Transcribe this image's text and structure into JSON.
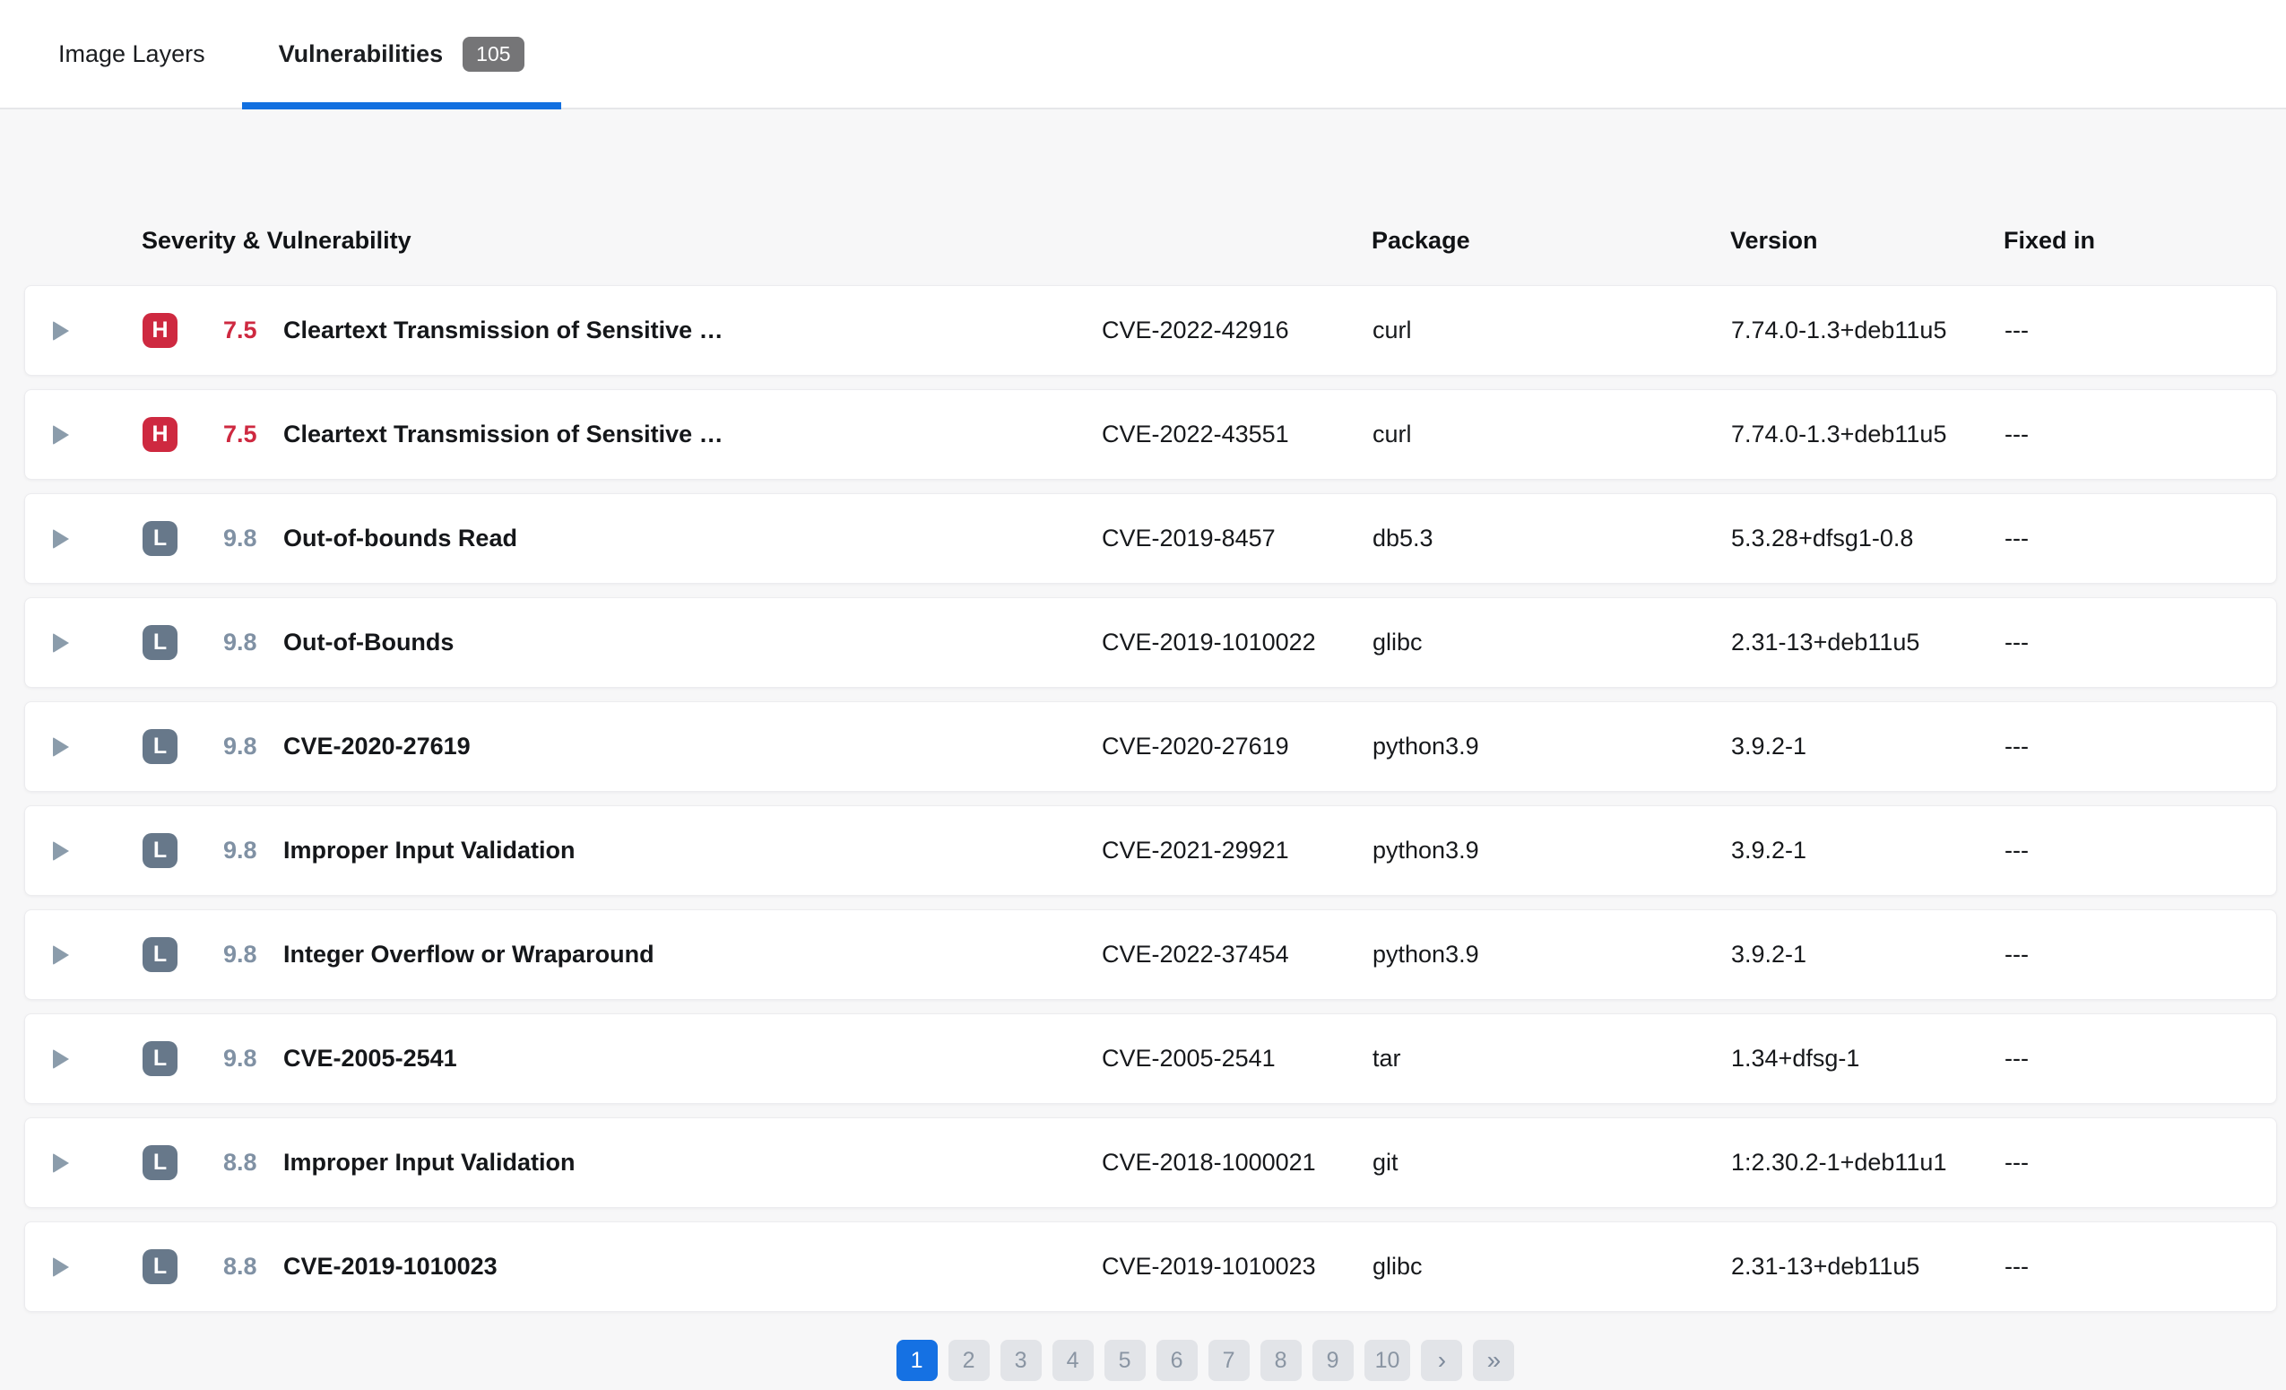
{
  "tabs": {
    "image_layers_label": "Image Layers",
    "vulnerabilities_label": "Vulnerabilities",
    "vulnerabilities_count": "105"
  },
  "table": {
    "headers": {
      "severity": "Severity & Vulnerability",
      "package": "Package",
      "version": "Version",
      "fixed_in": "Fixed in"
    }
  },
  "rows": [
    {
      "severity": "H",
      "score": "7.5",
      "title": "Cleartext Transmission of Sensitive …",
      "cve": "CVE-2022-42916",
      "package": "curl",
      "version": "7.74.0-1.3+deb11u5",
      "fixed_in": "---"
    },
    {
      "severity": "H",
      "score": "7.5",
      "title": "Cleartext Transmission of Sensitive …",
      "cve": "CVE-2022-43551",
      "package": "curl",
      "version": "7.74.0-1.3+deb11u5",
      "fixed_in": "---"
    },
    {
      "severity": "L",
      "score": "9.8",
      "title": "Out-of-bounds Read",
      "cve": "CVE-2019-8457",
      "package": "db5.3",
      "version": "5.3.28+dfsg1-0.8",
      "fixed_in": "---"
    },
    {
      "severity": "L",
      "score": "9.8",
      "title": "Out-of-Bounds",
      "cve": "CVE-2019-1010022",
      "package": "glibc",
      "version": "2.31-13+deb11u5",
      "fixed_in": "---"
    },
    {
      "severity": "L",
      "score": "9.8",
      "title": "CVE-2020-27619",
      "cve": "CVE-2020-27619",
      "package": "python3.9",
      "version": "3.9.2-1",
      "fixed_in": "---"
    },
    {
      "severity": "L",
      "score": "9.8",
      "title": "Improper Input Validation",
      "cve": "CVE-2021-29921",
      "package": "python3.9",
      "version": "3.9.2-1",
      "fixed_in": "---"
    },
    {
      "severity": "L",
      "score": "9.8",
      "title": "Integer Overflow or Wraparound",
      "cve": "CVE-2022-37454",
      "package": "python3.9",
      "version": "3.9.2-1",
      "fixed_in": "---"
    },
    {
      "severity": "L",
      "score": "9.8",
      "title": "CVE-2005-2541",
      "cve": "CVE-2005-2541",
      "package": "tar",
      "version": "1.34+dfsg-1",
      "fixed_in": "---"
    },
    {
      "severity": "L",
      "score": "8.8",
      "title": "Improper Input Validation",
      "cve": "CVE-2018-1000021",
      "package": "git",
      "version": "1:2.30.2-1+deb11u1",
      "fixed_in": "---"
    },
    {
      "severity": "L",
      "score": "8.8",
      "title": "CVE-2019-1010023",
      "cve": "CVE-2019-1010023",
      "package": "glibc",
      "version": "2.31-13+deb11u5",
      "fixed_in": "---"
    }
  ],
  "pagination": {
    "pages": [
      "1",
      "2",
      "3",
      "4",
      "5",
      "6",
      "7",
      "8",
      "9",
      "10"
    ],
    "active_page": "1",
    "next_icon": "›",
    "last_icon": "»"
  },
  "colors": {
    "accent_blue": "#1571e3",
    "severity_high_red": "#ce2940",
    "severity_low_slate": "#67788a",
    "score_low_text": "#8091a4",
    "page_button_bg": "#e2e4e8",
    "tab_badge_bg": "#757577",
    "content_bg": "#f7f7f8"
  }
}
